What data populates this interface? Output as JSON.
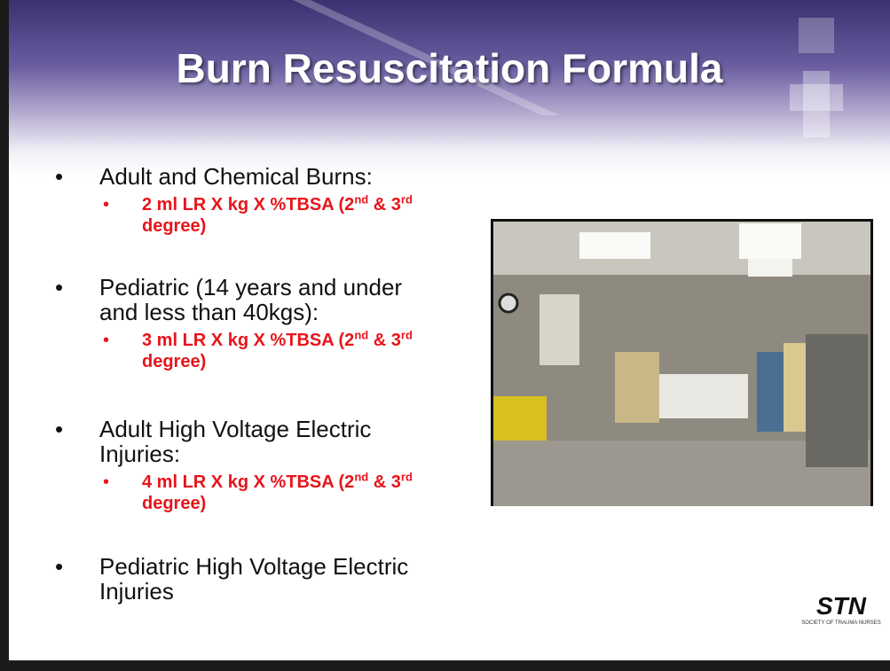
{
  "header": {
    "title": "Burn Resuscitation Formula"
  },
  "bullets": [
    {
      "text": "Adult and Chemical Burns:",
      "sub": [
        "2 ml LR X kg X %TBSA (2",
        "nd",
        " & 3",
        "rd",
        " degree)"
      ]
    },
    {
      "text": "Pediatric (14 years and under and less than 40kgs):",
      "sub": [
        "3 ml LR X kg X %TBSA (2",
        "nd",
        " & 3",
        "rd",
        " degree)"
      ]
    },
    {
      "text": "Adult High Voltage Electric Injuries:",
      "sub": [
        "4 ml LR X kg X %TBSA (2",
        "nd",
        " & 3",
        "rd",
        " degree)"
      ]
    },
    {
      "text": "Pediatric High Voltage Electric Injuries"
    }
  ],
  "logo": {
    "mark": "STN",
    "caption": "SOCIETY OF TRAUMA NURSES"
  }
}
